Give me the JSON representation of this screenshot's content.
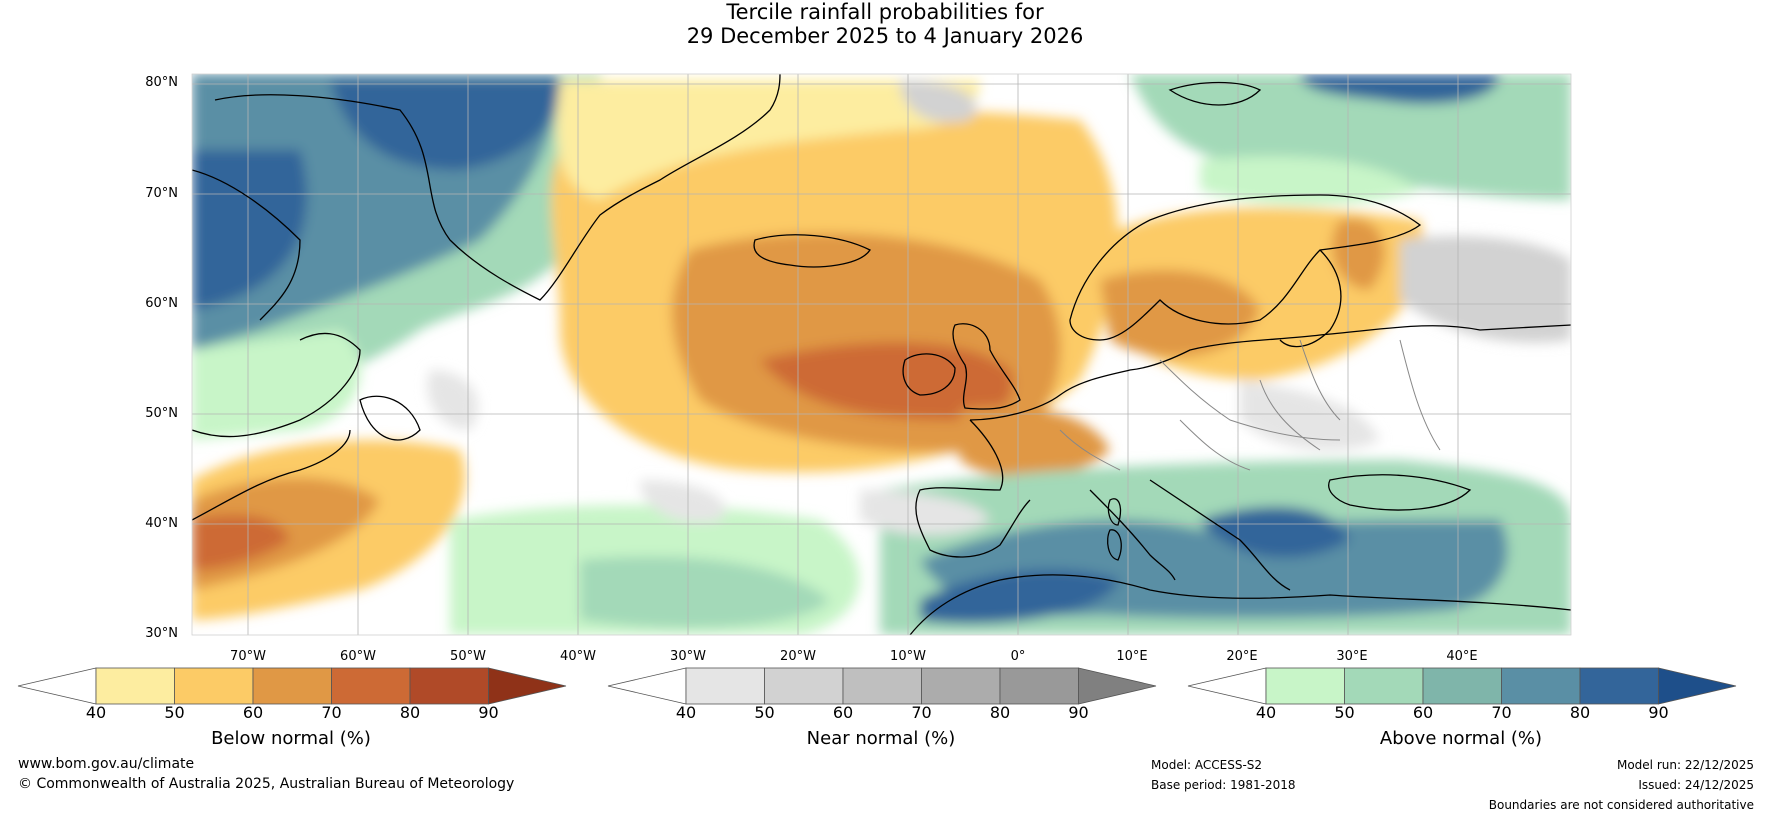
{
  "title": {
    "line1": "Tercile rainfall probabilities for",
    "line2": "29 December 2025 to 4 January 2026"
  },
  "map": {
    "lat_labels": [
      "80°N",
      "70°N",
      "60°N",
      "50°N",
      "40°N",
      "30°N"
    ],
    "lon_labels": [
      "70°W",
      "60°W",
      "50°W",
      "40°W",
      "30°W",
      "20°W",
      "10°W",
      "0°",
      "10°E",
      "20°E",
      "30°E",
      "40°E"
    ],
    "colors": {
      "below": [
        "#fdeda0",
        "#fccb66",
        "#e09845",
        "#cd6a35",
        "#b04a28",
        "#8f3218"
      ],
      "near": [
        "#e5e5e5",
        "#d2d2d2",
        "#bfbfbf",
        "#acacac",
        "#999999",
        "#808080"
      ],
      "above": [
        "#c8f5c8",
        "#a3d9b8",
        "#7fb5aa",
        "#5a8fa5",
        "#33659a",
        "#1e4f8a"
      ],
      "land_line": "#000000",
      "border_line": "#888888",
      "grid_line": "#b4b4b4"
    }
  },
  "colorbars": {
    "below": {
      "label": "Below normal (%)",
      "ticks": [
        "40",
        "50",
        "60",
        "70",
        "80",
        "90"
      ]
    },
    "near": {
      "label": "Near normal (%)",
      "ticks": [
        "40",
        "50",
        "60",
        "70",
        "80",
        "90"
      ]
    },
    "above": {
      "label": "Above normal (%)",
      "ticks": [
        "40",
        "50",
        "60",
        "70",
        "80",
        "90"
      ]
    }
  },
  "footer": {
    "website": "www.bom.gov.au/climate",
    "copyright": "© Commonwealth of Australia 2025, Australian Bureau of Meteorology",
    "model": "Model: ACCESS-S2",
    "base_period": "Base period: 1981-2018",
    "model_run": "Model run: 22/12/2025",
    "issued": "Issued: 24/12/2025",
    "disclaimer": "Boundaries are not considered authoritative"
  }
}
